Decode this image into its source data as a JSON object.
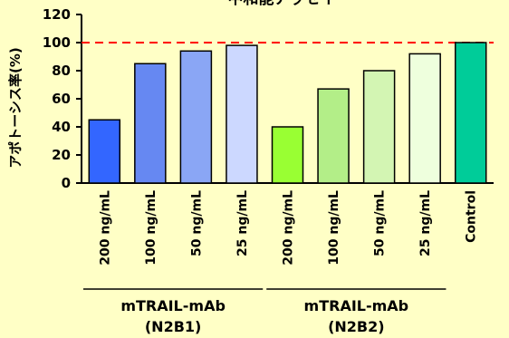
{
  "chart_data": {
    "type": "bar",
    "title": "中和能アッセイ",
    "ylabel": "アポトーシス率(%)",
    "xlabel": "",
    "ylim": [
      0,
      120
    ],
    "yticks": [
      0,
      20,
      40,
      60,
      80,
      100,
      120
    ],
    "reference_line": {
      "value": 100,
      "color": "#ff0000",
      "style": "dashed"
    },
    "categories": [
      "200 ng/mL",
      "100 ng/mL",
      "50 ng/mL",
      "25 ng/mL",
      "200 ng/mL",
      "100 ng/mL",
      "50 ng/mL",
      "25 ng/mL",
      "Control"
    ],
    "values": [
      45,
      85,
      94,
      98,
      40,
      67,
      80,
      92,
      100
    ],
    "colors": [
      "#3366ff",
      "#6688f2",
      "#8aa6f5",
      "#ccd8ff",
      "#99ff33",
      "#b3ee88",
      "#d3f5b3",
      "#eeffdd",
      "#00cc99"
    ],
    "groups": [
      {
        "label_line1": "mTRAIL-mAb",
        "label_line2": "(N2B1)",
        "start": 0,
        "end": 3
      },
      {
        "label_line1": "mTRAIL-mAb",
        "label_line2": "(N2B2)",
        "start": 4,
        "end": 7
      }
    ],
    "grid": false,
    "legend": "none"
  }
}
